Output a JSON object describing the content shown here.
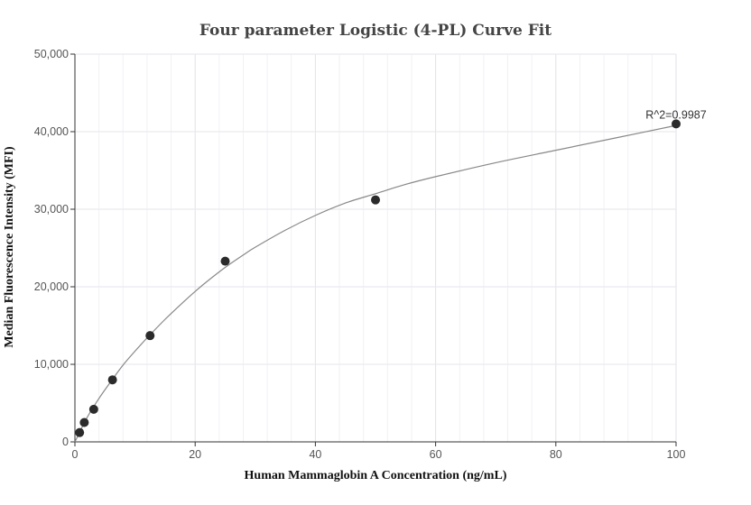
{
  "chart_data": {
    "type": "scatter",
    "title": "Four parameter Logistic (4-PL) Curve Fit",
    "xlabel": "Human Mammaglobin A Concentration (ng/mL)",
    "ylabel": "Median Fluorescence Intensity (MFI)",
    "xlim": [
      0,
      100
    ],
    "ylim": [
      0,
      50000
    ],
    "x_ticks": [
      0,
      20,
      40,
      60,
      80,
      100
    ],
    "y_ticks": [
      0,
      10000,
      20000,
      30000,
      40000,
      50000
    ],
    "x_tick_labels": [
      "0",
      "20",
      "40",
      "60",
      "80",
      "100"
    ],
    "y_tick_labels": [
      "0",
      "10,000",
      "20,000",
      "30,000",
      "40,000",
      "50,000"
    ],
    "grid": true,
    "points": {
      "x": [
        0.78,
        1.56,
        3.13,
        6.25,
        12.5,
        25,
        50,
        100
      ],
      "y": [
        1200,
        2500,
        4200,
        8000,
        13700,
        23300,
        31200,
        41000
      ]
    },
    "fit_curve": {
      "x": [
        0,
        2,
        4,
        6,
        8,
        10,
        12,
        15,
        18,
        20,
        22,
        25,
        28,
        30,
        35,
        40,
        45,
        50,
        55,
        60,
        70,
        80,
        90,
        100
      ],
      "y": [
        0,
        3100,
        5600,
        7800,
        9900,
        11700,
        13400,
        15800,
        18000,
        19400,
        20700,
        22500,
        24100,
        25100,
        27300,
        29200,
        30800,
        32000,
        33200,
        34200,
        36000,
        37600,
        39200,
        40800
      ]
    },
    "annotation": "R^2=0.9987",
    "colors": {
      "point": "#2b2b2b",
      "curve": "#888888",
      "grid": "#e6e6ee",
      "axis": "#333333"
    }
  }
}
